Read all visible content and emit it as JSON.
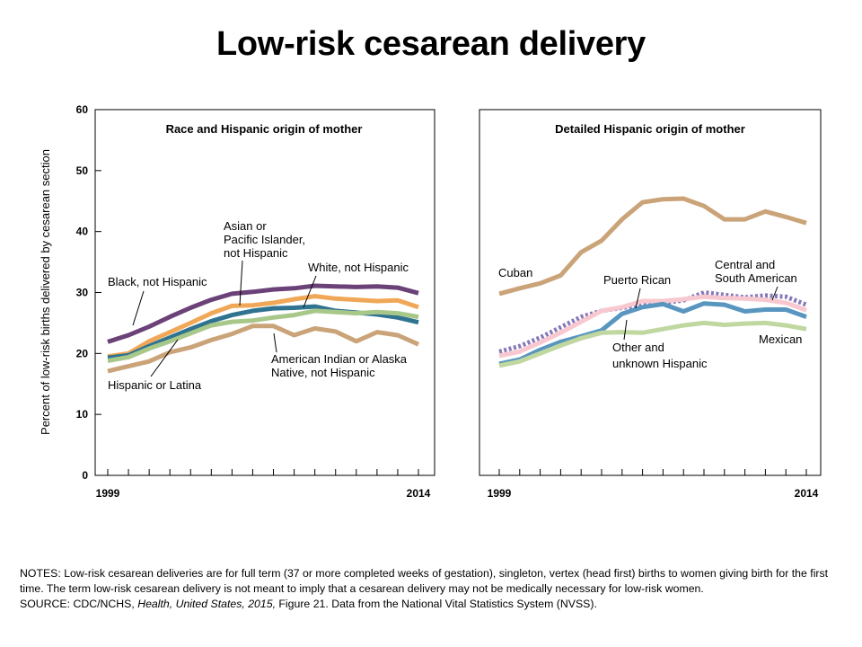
{
  "title": "Low-risk cesarean delivery",
  "notes": {
    "notes_text": "NOTES: Low-risk cesarean deliveries are for full term (37 or more completed weeks of gestation), singleton, vertex (head first) births to women giving birth for the first time. The term low-risk cesarean delivery is not meant to imply that a cesarean delivery may not be medically necessary for low-risk women.",
    "source_prefix": "SOURCE: CDC/NCHS, ",
    "source_italic": "Health, United States, 2015,",
    "source_suffix": " Figure 21. Data from the National Vital Statistics System (NVSS)."
  },
  "chart_data": [
    {
      "type": "line",
      "title": "Race and Hispanic origin of mother",
      "ylabel": "Percent of low-risk births delivered by cesarean section",
      "xlabel": "",
      "ylim": [
        0,
        60
      ],
      "yticks": [
        0,
        10,
        20,
        30,
        40,
        50,
        60
      ],
      "xlim": [
        1999,
        2014
      ],
      "xtick_labels": [
        "1999",
        "2014"
      ],
      "grid": false,
      "x": [
        1999,
        2000,
        2001,
        2002,
        2003,
        2004,
        2005,
        2006,
        2007,
        2008,
        2009,
        2010,
        2011,
        2012,
        2013,
        2014
      ],
      "series": [
        {
          "name": "Black, not Hispanic",
          "color": "#6b4278",
          "values": [
            21.9,
            23.0,
            24.4,
            26.0,
            27.5,
            28.8,
            29.8,
            30.1,
            30.5,
            30.7,
            31.1,
            31.0,
            30.9,
            31.0,
            30.8,
            29.9
          ]
        },
        {
          "name": "Asian or Pacific Islander, not Hispanic",
          "color": "#f0a858",
          "values": [
            19.5,
            20.0,
            22.0,
            23.5,
            25.0,
            26.6,
            27.8,
            27.9,
            28.3,
            28.9,
            29.4,
            29.0,
            28.8,
            28.6,
            28.7,
            27.6
          ]
        },
        {
          "name": "White, not Hispanic",
          "color": "#2f7391",
          "values": [
            19.3,
            19.7,
            21.2,
            22.6,
            24.0,
            25.3,
            26.3,
            27.0,
            27.4,
            27.5,
            27.7,
            27.0,
            26.7,
            26.4,
            25.9,
            25.1
          ]
        },
        {
          "name": "Hispanic or Latina",
          "color": "#a8c88a",
          "values": [
            18.8,
            19.4,
            20.8,
            22.0,
            23.3,
            24.6,
            25.2,
            25.4,
            25.9,
            26.3,
            27.0,
            26.8,
            26.6,
            26.8,
            26.6,
            26.0
          ]
        },
        {
          "name": "American Indian or Alaska Native, not Hispanic",
          "color": "#caa478",
          "values": [
            17.1,
            17.9,
            18.7,
            20.2,
            21.0,
            22.2,
            23.2,
            24.5,
            24.5,
            23.0,
            24.1,
            23.6,
            22.0,
            23.5,
            23.0,
            21.5
          ]
        }
      ],
      "labels": [
        {
          "text": "Black, not Hispanic"
        },
        {
          "text": "Asian or"
        },
        {
          "text": "Pacific Islander,"
        },
        {
          "text": "not Hispanic"
        },
        {
          "text": "White, not Hispanic"
        },
        {
          "text": "Hispanic or Latina"
        },
        {
          "text": "American Indian or Alaska"
        },
        {
          "text": "Native, not Hispanic"
        }
      ]
    },
    {
      "type": "line",
      "title": "Detailed Hispanic origin of mother",
      "ylabel": "",
      "xlabel": "",
      "ylim": [
        0,
        60
      ],
      "xlim": [
        1999,
        2014
      ],
      "xtick_labels": [
        "1999",
        "2014"
      ],
      "grid": false,
      "x": [
        1999,
        2000,
        2001,
        2002,
        2003,
        2004,
        2005,
        2006,
        2007,
        2008,
        2009,
        2010,
        2011,
        2012,
        2013,
        2014
      ],
      "series": [
        {
          "name": "Cuban",
          "color": "#caa478",
          "dash": false,
          "values": [
            29.8,
            30.7,
            31.5,
            32.8,
            36.6,
            38.5,
            42.0,
            44.8,
            45.3,
            45.4,
            44.2,
            42.0,
            42.0,
            43.3,
            42.4,
            41.4
          ]
        },
        {
          "name": "Central and South American",
          "color": "#8878b8",
          "dash": true,
          "values": [
            20.3,
            21.2,
            22.6,
            24.3,
            26.0,
            27.0,
            27.5,
            28.0,
            28.3,
            28.7,
            30.0,
            29.6,
            29.2,
            29.5,
            29.3,
            28.0
          ]
        },
        {
          "name": "Puerto Rican",
          "color": "#f8c8d0",
          "dash": false,
          "values": [
            19.6,
            20.3,
            21.8,
            23.4,
            25.2,
            27.0,
            27.6,
            28.6,
            28.6,
            28.9,
            29.3,
            29.1,
            29.0,
            28.8,
            28.3,
            27.1
          ]
        },
        {
          "name": "Other and unknown Hispanic",
          "color": "#5896c0",
          "dash": false,
          "values": [
            18.3,
            19.0,
            20.6,
            21.9,
            22.8,
            23.8,
            26.5,
            27.6,
            28.1,
            26.9,
            28.2,
            28.0,
            26.9,
            27.2,
            27.2,
            26.0
          ]
        },
        {
          "name": "Mexican",
          "color": "#c0d8a0",
          "dash": false,
          "values": [
            18.0,
            18.7,
            20.0,
            21.3,
            22.5,
            23.4,
            23.5,
            23.4,
            24.0,
            24.6,
            25.0,
            24.7,
            24.9,
            25.0,
            24.6,
            24.0
          ]
        }
      ],
      "labels": [
        {
          "text": "Cuban"
        },
        {
          "text": "Puerto Rican"
        },
        {
          "text": "Central and"
        },
        {
          "text": "South American"
        },
        {
          "text": "Mexican"
        },
        {
          "text": "Other and"
        },
        {
          "text": "unknown Hispanic"
        }
      ]
    }
  ]
}
